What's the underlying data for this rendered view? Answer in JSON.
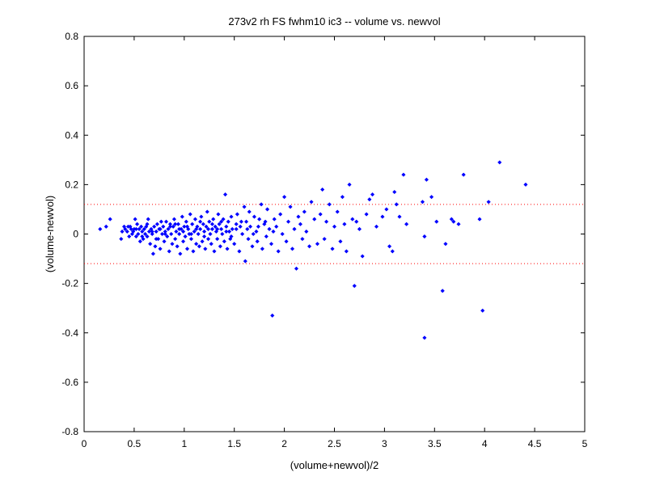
{
  "chart_data": {
    "type": "scatter",
    "title": "273v2 rh FS fwhm10 ic3 -- volume vs. newvol",
    "xlabel": "(volume+newvol)/2",
    "ylabel": "(volume-newvol)",
    "xlim": [
      0,
      5
    ],
    "ylim": [
      -0.8,
      0.8
    ],
    "xticks": [
      0,
      0.5,
      1,
      1.5,
      2,
      2.5,
      3,
      3.5,
      4,
      4.5,
      5
    ],
    "yticks": [
      -0.8,
      -0.6,
      -0.4,
      -0.2,
      0,
      0.2,
      0.4,
      0.6,
      0.8
    ],
    "xtick_labels": [
      "0",
      "0.5",
      "1",
      "1.5",
      "2",
      "2.5",
      "3",
      "3.5",
      "4",
      "4.5",
      "5"
    ],
    "ytick_labels": [
      "-0.8",
      "-0.6",
      "-0.4",
      "-0.2",
      "0",
      "0.2",
      "0.4",
      "0.6",
      "0.8"
    ],
    "grid": false,
    "point_color": "#0000ff",
    "reference_lines": [
      {
        "y": 0.12,
        "color": "#ff0000",
        "style": "dotted"
      },
      {
        "y": -0.12,
        "color": "#ff0000",
        "style": "dotted"
      }
    ],
    "points": [
      [
        0.16,
        0.02
      ],
      [
        0.22,
        0.03
      ],
      [
        0.26,
        0.06
      ],
      [
        0.37,
        -0.02
      ],
      [
        0.38,
        0.01
      ],
      [
        0.4,
        0.03
      ],
      [
        0.41,
        0.02
      ],
      [
        0.43,
        0.01
      ],
      [
        0.44,
        0.03
      ],
      [
        0.45,
        -0.01
      ],
      [
        0.47,
        0.02
      ],
      [
        0.48,
        0.0
      ],
      [
        0.49,
        0.01
      ],
      [
        0.5,
        0.02
      ],
      [
        0.51,
        0.06
      ],
      [
        0.52,
        -0.01
      ],
      [
        0.53,
        0.04
      ],
      [
        0.54,
        0.0
      ],
      [
        0.55,
        0.02
      ],
      [
        0.56,
        -0.03
      ],
      [
        0.57,
        0.03
      ],
      [
        0.58,
        0.01
      ],
      [
        0.59,
        -0.02
      ],
      [
        0.6,
        0.02
      ],
      [
        0.61,
        0.0
      ],
      [
        0.62,
        0.03
      ],
      [
        0.63,
        -0.01
      ],
      [
        0.64,
        0.06
      ],
      [
        0.65,
        0.01
      ],
      [
        0.66,
        -0.04
      ],
      [
        0.67,
        0.02
      ],
      [
        0.68,
        0.0
      ],
      [
        0.69,
        -0.08
      ],
      [
        0.7,
        0.03
      ],
      [
        0.71,
        -0.05
      ],
      [
        0.72,
        0.01
      ],
      [
        0.73,
        0.04
      ],
      [
        0.74,
        -0.02
      ],
      [
        0.75,
        0.02
      ],
      [
        0.76,
        -0.06
      ],
      [
        0.77,
        0.05
      ],
      [
        0.78,
        0.0
      ],
      [
        0.79,
        0.03
      ],
      [
        0.8,
        -0.03
      ],
      [
        0.81,
        0.01
      ],
      [
        0.82,
        0.05
      ],
      [
        0.83,
        -0.01
      ],
      [
        0.84,
        0.02
      ],
      [
        0.85,
        -0.07
      ],
      [
        0.86,
        0.04
      ],
      [
        0.87,
        0.0
      ],
      [
        0.88,
        -0.04
      ],
      [
        0.89,
        0.03
      ],
      [
        0.9,
        0.06
      ],
      [
        0.91,
        -0.02
      ],
      [
        0.92,
        0.01
      ],
      [
        0.93,
        -0.05
      ],
      [
        0.94,
        0.04
      ],
      [
        0.95,
        0.0
      ],
      [
        0.96,
        -0.08
      ],
      [
        0.97,
        0.02
      ],
      [
        0.98,
        0.07
      ],
      [
        0.99,
        -0.03
      ],
      [
        1.0,
        0.03
      ],
      [
        1.01,
        -0.01
      ],
      [
        1.02,
        0.05
      ],
      [
        1.03,
        -0.06
      ],
      [
        1.04,
        0.02
      ],
      [
        1.05,
        0.0
      ],
      [
        1.06,
        0.08
      ],
      [
        1.07,
        -0.02
      ],
      [
        1.08,
        0.04
      ],
      [
        1.09,
        -0.07
      ],
      [
        1.1,
        0.01
      ],
      [
        1.11,
        0.06
      ],
      [
        1.12,
        -0.04
      ],
      [
        1.13,
        0.03
      ],
      [
        1.14,
        0.0
      ],
      [
        1.15,
        -0.05
      ],
      [
        1.16,
        0.02
      ],
      [
        1.17,
        0.07
      ],
      [
        1.18,
        -0.03
      ],
      [
        1.19,
        0.04
      ],
      [
        1.2,
        0.01
      ],
      [
        1.21,
        -0.06
      ],
      [
        1.22,
        0.03
      ],
      [
        1.23,
        0.09
      ],
      [
        1.24,
        -0.02
      ],
      [
        1.25,
        0.05
      ],
      [
        1.26,
        0.0
      ],
      [
        1.27,
        -0.04
      ],
      [
        1.28,
        0.02
      ],
      [
        1.29,
        0.06
      ],
      [
        1.3,
        -0.07
      ],
      [
        1.31,
        0.03
      ],
      [
        1.32,
        0.01
      ],
      [
        1.33,
        -0.02
      ],
      [
        1.34,
        0.08
      ],
      [
        1.35,
        0.04
      ],
      [
        1.36,
        -0.05
      ],
      [
        1.37,
        0.02
      ],
      [
        1.38,
        0.0
      ],
      [
        1.39,
        0.06
      ],
      [
        1.4,
        -0.03
      ],
      [
        1.41,
        0.16
      ],
      [
        1.42,
        0.03
      ],
      [
        1.43,
        -0.06
      ],
      [
        1.44,
        0.05
      ],
      [
        1.45,
        0.01
      ],
      [
        1.46,
        -0.02
      ],
      [
        1.47,
        0.07
      ],
      [
        1.48,
        0.02
      ],
      [
        1.5,
        -0.04
      ],
      [
        1.52,
        0.04
      ],
      [
        1.53,
        0.08
      ],
      [
        1.55,
        -0.07
      ],
      [
        1.56,
        0.03
      ],
      [
        1.58,
        0.0
      ],
      [
        1.6,
        0.11
      ],
      [
        1.61,
        -0.11
      ],
      [
        1.62,
        0.05
      ],
      [
        1.64,
        -0.02
      ],
      [
        1.65,
        0.09
      ],
      [
        1.66,
        0.03
      ],
      [
        1.68,
        -0.05
      ],
      [
        1.7,
        0.07
      ],
      [
        1.72,
        0.01
      ],
      [
        1.73,
        -0.03
      ],
      [
        1.75,
        0.06
      ],
      [
        1.77,
        0.12
      ],
      [
        1.78,
        -0.06
      ],
      [
        1.8,
        0.04
      ],
      [
        1.82,
        -0.01
      ],
      [
        1.83,
        0.1
      ],
      [
        1.85,
        0.02
      ],
      [
        1.87,
        -0.04
      ],
      [
        1.88,
        -0.33
      ],
      [
        1.9,
        0.06
      ],
      [
        1.92,
        0.03
      ],
      [
        1.94,
        -0.07
      ],
      [
        1.96,
        0.08
      ],
      [
        1.98,
        0.0
      ],
      [
        2.0,
        0.15
      ],
      [
        2.02,
        -0.03
      ],
      [
        2.04,
        0.05
      ],
      [
        2.06,
        0.11
      ],
      [
        2.08,
        -0.06
      ],
      [
        2.1,
        0.02
      ],
      [
        2.12,
        -0.14
      ],
      [
        2.14,
        0.07
      ],
      [
        2.16,
        0.04
      ],
      [
        2.18,
        -0.02
      ],
      [
        2.2,
        0.09
      ],
      [
        2.22,
        0.01
      ],
      [
        2.25,
        -0.05
      ],
      [
        2.27,
        0.13
      ],
      [
        2.3,
        0.06
      ],
      [
        2.33,
        -0.04
      ],
      [
        2.36,
        0.08
      ],
      [
        2.38,
        0.18
      ],
      [
        2.4,
        -0.02
      ],
      [
        2.42,
        0.05
      ],
      [
        2.45,
        0.12
      ],
      [
        2.48,
        -0.06
      ],
      [
        2.5,
        0.03
      ],
      [
        2.53,
        0.09
      ],
      [
        2.56,
        -0.03
      ],
      [
        2.58,
        0.15
      ],
      [
        2.6,
        0.04
      ],
      [
        2.62,
        -0.07
      ],
      [
        2.65,
        0.2
      ],
      [
        2.68,
        0.06
      ],
      [
        2.7,
        -0.21
      ],
      [
        2.72,
        0.05
      ],
      [
        2.75,
        0.02
      ],
      [
        2.78,
        -0.09
      ],
      [
        2.82,
        0.08
      ],
      [
        2.85,
        0.14
      ],
      [
        2.88,
        0.16
      ],
      [
        2.92,
        0.03
      ],
      [
        2.98,
        0.07
      ],
      [
        3.02,
        0.1
      ],
      [
        3.05,
        -0.05
      ],
      [
        3.08,
        -0.07
      ],
      [
        3.1,
        0.17
      ],
      [
        3.12,
        0.12
      ],
      [
        3.15,
        0.07
      ],
      [
        3.19,
        0.24
      ],
      [
        3.22,
        0.04
      ],
      [
        3.38,
        0.13
      ],
      [
        3.4,
        -0.01
      ],
      [
        3.4,
        -0.42
      ],
      [
        3.42,
        0.22
      ],
      [
        3.47,
        0.15
      ],
      [
        3.52,
        0.05
      ],
      [
        3.58,
        -0.23
      ],
      [
        3.61,
        -0.04
      ],
      [
        3.67,
        0.06
      ],
      [
        3.69,
        0.05
      ],
      [
        3.74,
        0.04
      ],
      [
        3.79,
        0.24
      ],
      [
        3.95,
        0.06
      ],
      [
        3.98,
        -0.31
      ],
      [
        4.04,
        0.13
      ],
      [
        4.15,
        0.29
      ],
      [
        4.41,
        0.2
      ],
      [
        0.46,
        0.03
      ],
      [
        0.52,
        0.02
      ],
      [
        0.58,
        -0.01
      ],
      [
        0.63,
        0.04
      ],
      [
        0.68,
        0.01
      ],
      [
        0.72,
        -0.02
      ],
      [
        0.76,
        0.02
      ],
      [
        0.81,
        0.0
      ],
      [
        0.86,
        0.03
      ],
      [
        0.91,
        0.04
      ],
      [
        0.95,
        0.02
      ],
      [
        0.99,
        0.01
      ],
      [
        1.03,
        0.03
      ],
      [
        1.07,
        0.0
      ],
      [
        1.12,
        0.02
      ],
      [
        1.16,
        0.05
      ],
      [
        1.2,
        -0.01
      ],
      [
        1.24,
        0.02
      ],
      [
        1.28,
        0.04
      ],
      [
        1.33,
        0.02
      ],
      [
        1.37,
        0.05
      ],
      [
        1.42,
        0.01
      ],
      [
        1.47,
        -0.01
      ],
      [
        1.52,
        0.02
      ],
      [
        1.57,
        0.05
      ],
      [
        1.63,
        0.02
      ],
      [
        1.69,
        0.0
      ],
      [
        1.74,
        0.03
      ],
      [
        1.81,
        0.05
      ],
      [
        1.89,
        0.01
      ]
    ]
  }
}
